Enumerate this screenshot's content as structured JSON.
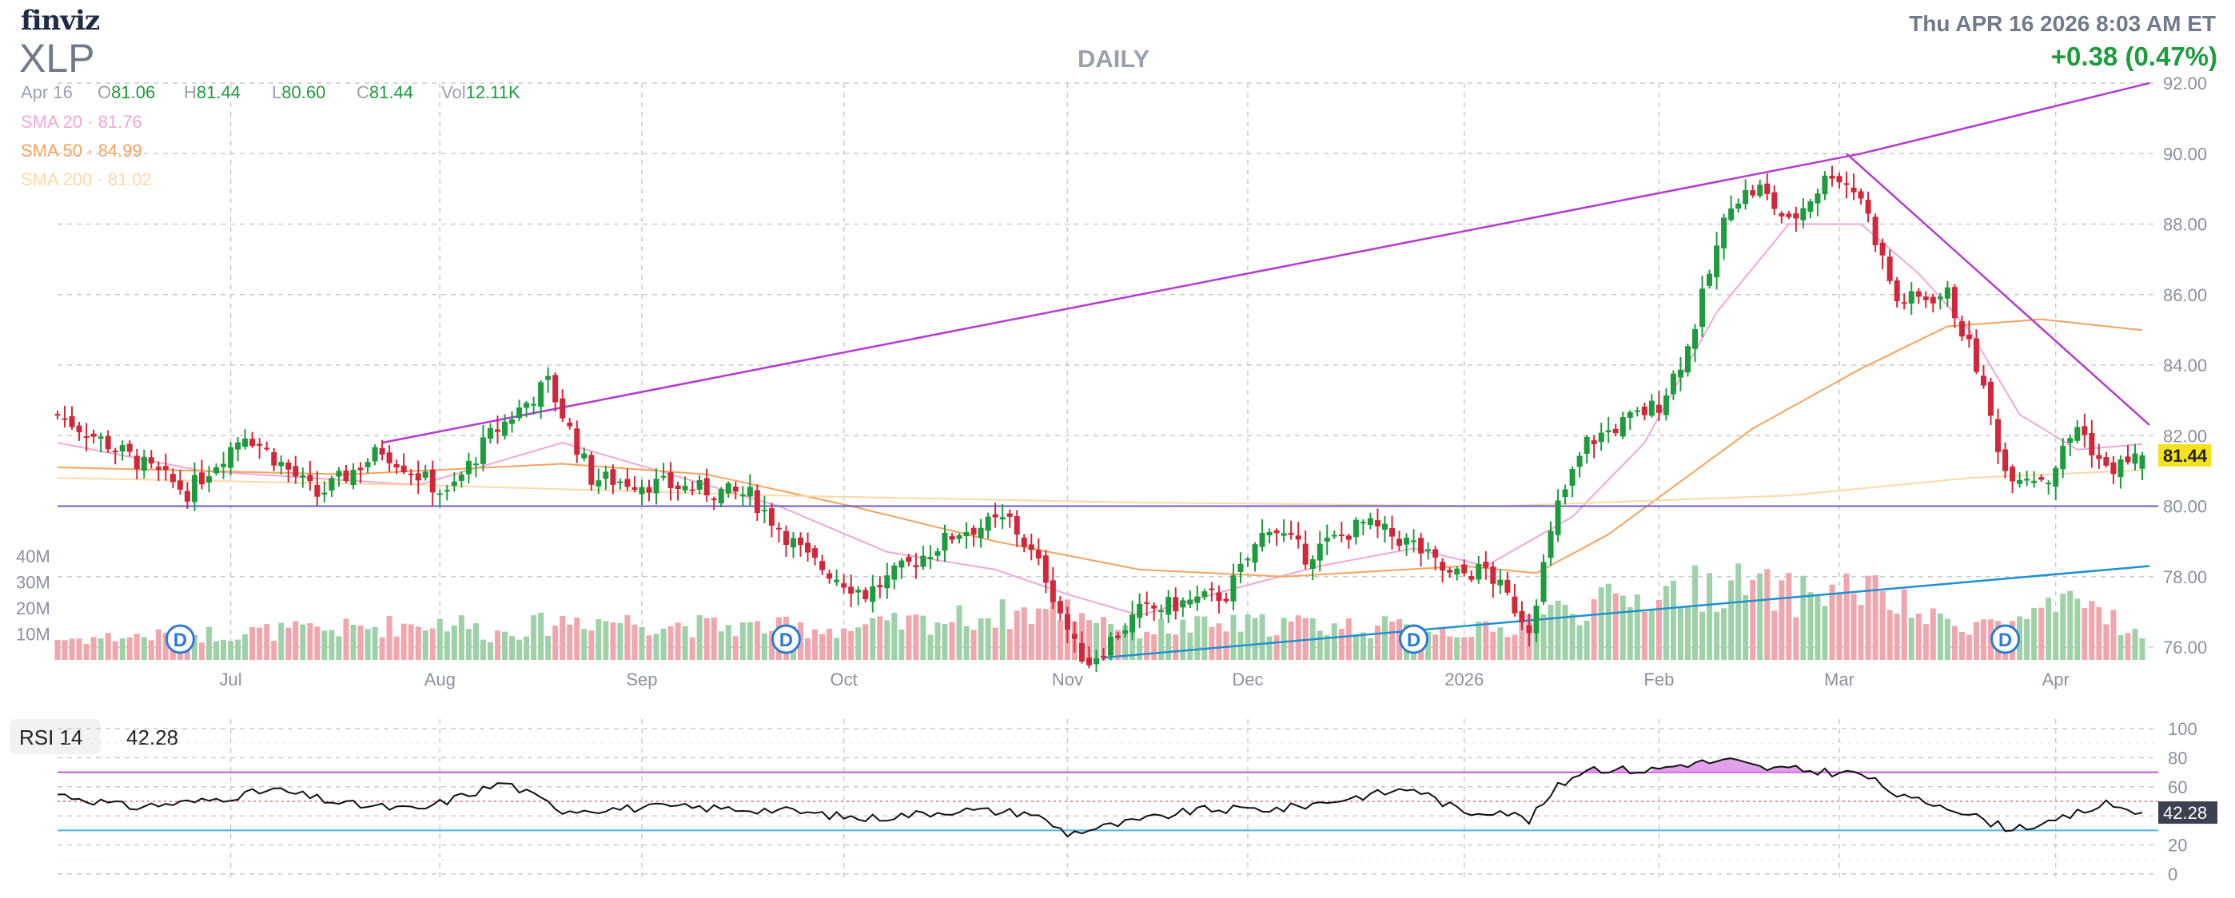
{
  "header": {
    "brand": "finviz",
    "ticker": "XLP",
    "period": "DAILY",
    "datetime": "Thu APR 16 2026 8:03 AM ET",
    "change": "+0.38 (0.47%)"
  },
  "ohlc": {
    "date": "Apr 16",
    "open_label": "O",
    "open": "81.06",
    "high_label": "H",
    "high": "81.44",
    "low_label": "L",
    "low": "80.60",
    "close_label": "C",
    "close": "81.44",
    "vol_label": "Vol",
    "vol": "12.11K"
  },
  "indicators": {
    "sma20": {
      "label": "SMA 20",
      "value": "81.76",
      "color": "#f2a6d8"
    },
    "sma50": {
      "label": "SMA 50",
      "value": "84.99",
      "color": "#f5a25d"
    },
    "sma200": {
      "label": "SMA 200",
      "value": "81.02",
      "color": "#fbd9a6"
    }
  },
  "rsi": {
    "label": "RSI 14",
    "value": "42.28",
    "value_tag": "42.28"
  },
  "colors": {
    "up": "#1e9b3d",
    "down": "#d0283a",
    "upVol": "#9fd1a9",
    "downVol": "#f1a6ad",
    "resist": "#b43ad0",
    "support": "#1e90d0",
    "hline": "#6a5acd",
    "tag": "#f5e11c",
    "grid": "#c8cbd1",
    "axis": "#8a919d"
  },
  "chart_data": [
    {
      "type": "candlestick",
      "title": "XLP DAILY",
      "x_ticks": [
        "Jul",
        "Aug",
        "Sep",
        "Oct",
        "Nov",
        "Dec",
        "2026",
        "Feb",
        "Mar",
        "Apr"
      ],
      "x_tick_index": [
        24,
        53,
        81,
        109,
        140,
        165,
        195,
        222,
        247,
        277
      ],
      "y_ticks": [
        "76.00",
        "78.00",
        "80.00",
        "82.00",
        "84.00",
        "86.00",
        "88.00",
        "90.00",
        "92.00"
      ],
      "ylim": [
        74.5,
        92.4
      ],
      "last_price_tag": "81.44",
      "dividend_marker": "D",
      "dividend_index": [
        17,
        101,
        188,
        270
      ],
      "volume_ticks": [
        "10M",
        "20M",
        "30M",
        "40M"
      ],
      "volume_max": 40,
      "horizontal_line": 80.0,
      "trendlines": [
        {
          "name": "resistance",
          "points": [
            [
              45,
              81.8
            ],
            [
              250,
              90.0
            ],
            [
              290,
              92.0
            ]
          ]
        },
        {
          "name": "resistance-2",
          "points": [
            [
              248,
              90.0
            ],
            [
              290,
              82.3
            ]
          ]
        },
        {
          "name": "support",
          "points": [
            [
              145,
              75.7
            ],
            [
              290,
              78.3
            ]
          ]
        }
      ],
      "anchors": [
        [
          0,
          82.6
        ],
        [
          10,
          81.4
        ],
        [
          18,
          80.4
        ],
        [
          26,
          82.1
        ],
        [
          36,
          80.3
        ],
        [
          45,
          81.6
        ],
        [
          54,
          80.3
        ],
        [
          60,
          82.0
        ],
        [
          68,
          83.5
        ],
        [
          74,
          80.8
        ],
        [
          84,
          80.6
        ],
        [
          96,
          80.3
        ],
        [
          104,
          78.5
        ],
        [
          112,
          77.5
        ],
        [
          125,
          79.3
        ],
        [
          132,
          79.6
        ],
        [
          137,
          78.0
        ],
        [
          141,
          76.0
        ],
        [
          143,
          75.6
        ],
        [
          150,
          77.0
        ],
        [
          162,
          77.5
        ],
        [
          168,
          79.5
        ],
        [
          173,
          78.6
        ],
        [
          181,
          79.5
        ],
        [
          188,
          78.9
        ],
        [
          193,
          78.0
        ],
        [
          198,
          78.2
        ],
        [
          204,
          76.6
        ],
        [
          208,
          80.0
        ],
        [
          212,
          81.8
        ],
        [
          222,
          82.9
        ],
        [
          226,
          84.5
        ],
        [
          232,
          88.7
        ],
        [
          236,
          89.0
        ],
        [
          240,
          88.0
        ],
        [
          246,
          89.5
        ],
        [
          250,
          88.8
        ],
        [
          255,
          85.8
        ],
        [
          262,
          86.0
        ],
        [
          266,
          84.0
        ],
        [
          270,
          81.0
        ],
        [
          276,
          80.8
        ],
        [
          280,
          82.3
        ],
        [
          284,
          81.0
        ],
        [
          289,
          81.44
        ]
      ],
      "sma_anchors": {
        "sma20": [
          [
            0,
            81.8
          ],
          [
            20,
            81.0
          ],
          [
            50,
            80.6
          ],
          [
            70,
            81.8
          ],
          [
            85,
            80.9
          ],
          [
            100,
            80.0
          ],
          [
            115,
            78.7
          ],
          [
            130,
            78.2
          ],
          [
            140,
            77.5
          ],
          [
            150,
            76.9
          ],
          [
            162,
            77.6
          ],
          [
            175,
            78.3
          ],
          [
            188,
            78.8
          ],
          [
            198,
            78.3
          ],
          [
            210,
            79.7
          ],
          [
            220,
            81.8
          ],
          [
            230,
            85.5
          ],
          [
            240,
            88.0
          ],
          [
            250,
            88.0
          ],
          [
            258,
            86.6
          ],
          [
            265,
            85.0
          ],
          [
            272,
            82.6
          ],
          [
            280,
            81.6
          ],
          [
            289,
            81.76
          ]
        ],
        "sma50": [
          [
            0,
            81.1
          ],
          [
            40,
            80.9
          ],
          [
            70,
            81.2
          ],
          [
            90,
            80.9
          ],
          [
            110,
            80.0
          ],
          [
            130,
            79.0
          ],
          [
            150,
            78.2
          ],
          [
            170,
            78.0
          ],
          [
            195,
            78.3
          ],
          [
            205,
            78.1
          ],
          [
            215,
            79.2
          ],
          [
            235,
            82.2
          ],
          [
            250,
            83.9
          ],
          [
            262,
            85.1
          ],
          [
            275,
            85.3
          ],
          [
            289,
            84.99
          ]
        ],
        "sma200": [
          [
            0,
            80.8
          ],
          [
            50,
            80.6
          ],
          [
            100,
            80.3
          ],
          [
            150,
            80.1
          ],
          [
            200,
            80.0
          ],
          [
            240,
            80.3
          ],
          [
            265,
            80.8
          ],
          [
            289,
            81.02
          ]
        ]
      },
      "volume_anchors": [
        [
          0,
          8
        ],
        [
          20,
          10
        ],
        [
          40,
          12
        ],
        [
          55,
          15
        ],
        [
          60,
          10
        ],
        [
          72,
          16
        ],
        [
          90,
          13
        ],
        [
          110,
          12
        ],
        [
          140,
          20
        ],
        [
          150,
          12
        ],
        [
          170,
          14
        ],
        [
          200,
          11
        ],
        [
          206,
          18
        ],
        [
          215,
          22
        ],
        [
          225,
          27
        ],
        [
          232,
          29
        ],
        [
          240,
          25
        ],
        [
          250,
          28
        ],
        [
          260,
          15
        ],
        [
          270,
          14
        ],
        [
          282,
          22
        ],
        [
          289,
          8
        ]
      ]
    },
    {
      "type": "line",
      "title": "RSI 14",
      "y_ticks": [
        "0",
        "20",
        "40",
        "60",
        "80",
        "100"
      ],
      "ylim": [
        0,
        100
      ],
      "overbought": 70,
      "oversold": 30,
      "midline": 50,
      "current_value": 42.28,
      "rsi_anchors": [
        [
          0,
          55
        ],
        [
          10,
          46
        ],
        [
          20,
          50
        ],
        [
          30,
          58
        ],
        [
          40,
          48
        ],
        [
          50,
          44
        ],
        [
          62,
          63
        ],
        [
          70,
          44
        ],
        [
          85,
          46
        ],
        [
          100,
          44
        ],
        [
          112,
          38
        ],
        [
          125,
          44
        ],
        [
          135,
          42
        ],
        [
          140,
          28
        ],
        [
          147,
          34
        ],
        [
          158,
          44
        ],
        [
          170,
          45
        ],
        [
          180,
          53
        ],
        [
          188,
          59
        ],
        [
          195,
          42
        ],
        [
          200,
          44
        ],
        [
          204,
          37
        ],
        [
          208,
          60
        ],
        [
          212,
          73
        ],
        [
          220,
          71
        ],
        [
          226,
          76
        ],
        [
          232,
          78
        ],
        [
          236,
          73
        ],
        [
          240,
          72
        ],
        [
          246,
          70
        ],
        [
          250,
          69
        ],
        [
          256,
          52
        ],
        [
          262,
          47
        ],
        [
          266,
          39
        ],
        [
          270,
          32
        ],
        [
          276,
          34
        ],
        [
          280,
          42
        ],
        [
          284,
          48
        ],
        [
          289,
          42.28
        ]
      ]
    }
  ]
}
